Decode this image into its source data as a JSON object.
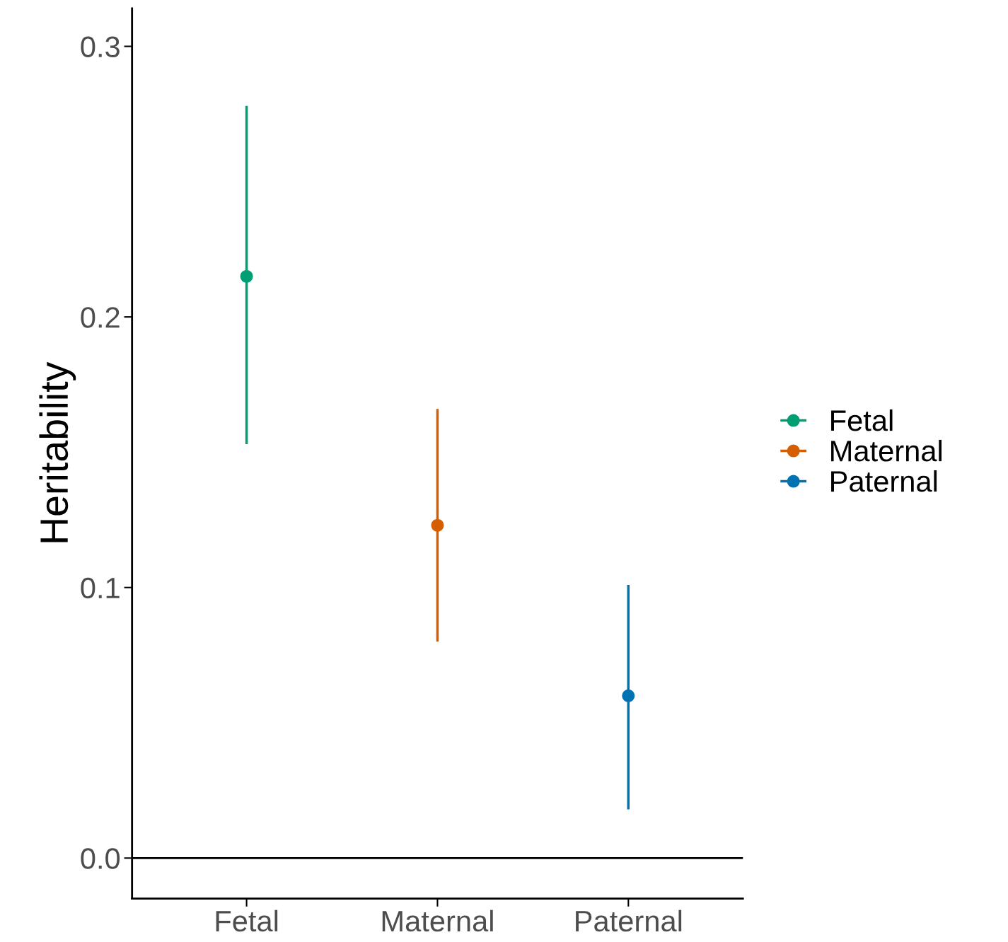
{
  "chart_data": {
    "type": "scatter",
    "ylabel": "Heritability",
    "categories": [
      "Fetal",
      "Maternal",
      "Paternal"
    ],
    "series": [
      {
        "name": "Fetal",
        "color": "#009e73",
        "values": [
          0.215,
          null,
          null
        ],
        "errors": [
          [
            0.153,
            0.278
          ],
          null,
          null
        ]
      },
      {
        "name": "Maternal",
        "color": "#d55e00",
        "values": [
          null,
          0.123,
          null
        ],
        "errors": [
          null,
          [
            0.08,
            0.166
          ],
          null
        ]
      },
      {
        "name": "Paternal",
        "color": "#0072b2",
        "values": [
          null,
          null,
          0.06
        ],
        "errors": [
          null,
          null,
          [
            0.018,
            0.101
          ]
        ]
      }
    ],
    "ylim": [
      -0.015,
      0.314
    ],
    "yticks": [
      {
        "value": 0,
        "label": "0.0"
      },
      0.1,
      0.2,
      0.3
    ],
    "ref_lines": [
      {
        "axis": "y",
        "value": 0,
        "color": "#000000"
      }
    ],
    "marker": "circle",
    "grid": false,
    "legend": "right"
  }
}
